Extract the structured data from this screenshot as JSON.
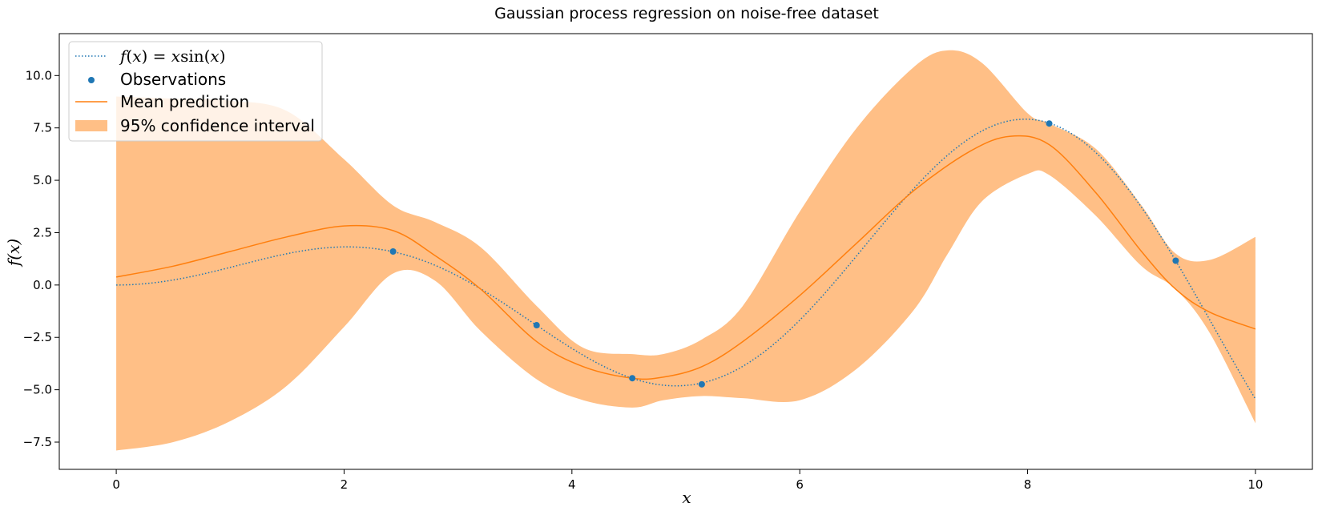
{
  "chart_data": {
    "type": "line",
    "title": "Gaussian process regression on noise-free dataset",
    "xlabel": "x",
    "ylabel": "f(x)",
    "xlim": [
      -0.5,
      10.5
    ],
    "ylim": [
      -8.8,
      12.0
    ],
    "xticks": [
      0,
      2,
      4,
      6,
      8,
      10
    ],
    "xtick_labels": [
      "0",
      "2",
      "4",
      "6",
      "8",
      "10"
    ],
    "yticks": [
      -7.5,
      -5.0,
      -2.5,
      0.0,
      2.5,
      5.0,
      7.5,
      10.0
    ],
    "ytick_labels": [
      "−7.5",
      "−5.0",
      "−2.5",
      "0.0",
      "2.5",
      "5.0",
      "7.5",
      "10.0"
    ],
    "grid": false,
    "legend_position": "top-left",
    "legend": [
      {
        "key": "true_function",
        "label": "f(x) = x sin(x)"
      },
      {
        "key": "observations",
        "label": "Observations"
      },
      {
        "key": "mean",
        "label": "Mean prediction"
      },
      {
        "key": "ci",
        "label": "95% confidence interval"
      }
    ],
    "colors": {
      "true_function": "#1f77b4",
      "observations": "#1f77b4",
      "mean": "#ff7f0e",
      "ci": "#ff7f0e"
    },
    "observations": {
      "x": [
        2.43,
        3.69,
        4.53,
        5.14,
        8.19,
        9.3
      ],
      "y": [
        1.6,
        -1.92,
        -4.45,
        -4.74,
        7.71,
        1.16
      ]
    },
    "mean_prediction": {
      "x": [
        0,
        0.5,
        1.0,
        1.5,
        2.0,
        2.43,
        2.8,
        3.2,
        3.69,
        4.1,
        4.53,
        4.8,
        5.14,
        5.5,
        6.0,
        6.5,
        7.0,
        7.5,
        7.85,
        8.19,
        8.6,
        9.0,
        9.3,
        9.6,
        10.0
      ],
      "y": [
        0.38,
        0.9,
        1.6,
        2.3,
        2.82,
        2.6,
        1.4,
        -0.2,
        -2.7,
        -3.9,
        -4.45,
        -4.4,
        -3.9,
        -2.7,
        -0.5,
        2.0,
        4.5,
        6.4,
        7.1,
        6.7,
        4.4,
        1.6,
        -0.2,
        -1.3,
        -2.1
      ]
    },
    "confidence_interval": {
      "x": [
        0,
        0.5,
        1.0,
        1.5,
        2.0,
        2.43,
        2.8,
        3.2,
        3.69,
        4.1,
        4.53,
        4.8,
        5.14,
        5.5,
        6.0,
        6.5,
        7.0,
        7.3,
        7.6,
        8.0,
        8.19,
        8.6,
        9.0,
        9.3,
        9.6,
        10.0
      ],
      "upper": [
        9.0,
        8.9,
        8.8,
        8.3,
        6.0,
        3.8,
        3.0,
        1.8,
        -1.0,
        -3.0,
        -3.3,
        -3.3,
        -2.6,
        -1.0,
        3.5,
        7.5,
        10.4,
        11.2,
        10.6,
        8.2,
        7.71,
        6.5,
        3.8,
        1.5,
        1.2,
        2.3
      ],
      "lower": [
        -7.9,
        -7.5,
        -6.5,
        -4.8,
        -2.0,
        0.55,
        0.2,
        -2.2,
        -4.5,
        -5.5,
        -5.85,
        -5.5,
        -5.3,
        -5.4,
        -5.5,
        -4.0,
        -1.2,
        1.5,
        4.0,
        5.3,
        5.25,
        3.3,
        0.9,
        -0.2,
        -2.3,
        -6.6
      ]
    }
  }
}
